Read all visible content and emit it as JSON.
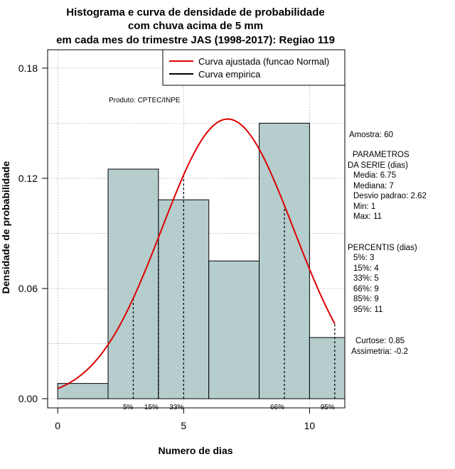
{
  "chart_data": {
    "type": "bar",
    "title_lines": [
      "Histograma e curva de densidade de probabilidade",
      "com chuva acima de 5 mm",
      "em cada mes do trimestre JAS (1998-2017): Regiao 119"
    ],
    "xlabel": "Numero de dias",
    "ylabel": "Densidade de probabilidade",
    "xlim": [
      -0.4,
      11.4
    ],
    "ylim": [
      -0.005,
      0.19
    ],
    "x_ticks": [
      0,
      5,
      10
    ],
    "y_ticks": [
      0.0,
      0.06,
      0.12,
      0.18
    ],
    "y_tick_labels": [
      "0.00",
      "0.06",
      "0.12",
      "0.18"
    ],
    "grid": true,
    "bins": [
      {
        "start": 0,
        "end": 2,
        "density": 0.0083
      },
      {
        "start": 2,
        "end": 4,
        "density": 0.125
      },
      {
        "start": 4,
        "end": 6,
        "density": 0.1083
      },
      {
        "start": 6,
        "end": 8,
        "density": 0.075
      },
      {
        "start": 8,
        "end": 10,
        "density": 0.15
      },
      {
        "start": 10,
        "end": 11.4,
        "density": 0.0333
      }
    ],
    "normal_curve": {
      "mean": 6.75,
      "sd": 2.62
    },
    "percentile_markers": [
      {
        "label": "5%",
        "x": 3
      },
      {
        "label": "15%",
        "x": 4
      },
      {
        "label": "33%",
        "x": 5
      },
      {
        "label": "66%",
        "x": 9
      },
      {
        "label": "95%",
        "x": 11
      }
    ],
    "legend": {
      "placement": "top-right",
      "entries": [
        {
          "label": "Curva ajustada (funcao Normal)",
          "color": "#dd0000"
        },
        {
          "label": "Curva empirica",
          "color": "#000000"
        }
      ]
    },
    "colors": {
      "bar_fill": "#b5cdcd",
      "curve": "#dd0000",
      "grid": "#bbbbbb"
    }
  },
  "credit": "Produto: CPTEC/INPE",
  "stats": {
    "amostra": "Amostra: 60",
    "param_header_1": "PARAMETROS",
    "param_header_2": "DA SERIE (dias)",
    "media": "Media: 6.75",
    "mediana": "Mediana: 7",
    "desvio": "Desvio padrao: 2.62",
    "min": "Min: 1",
    "max": "Max: 11",
    "percentis_header": "PERCENTIS (dias)",
    "p5": "5%: 3",
    "p15": "15%: 4",
    "p33": "33%: 5",
    "p66": "66%: 9",
    "p85": "85%: 9",
    "p95": "95%: 11",
    "curtose": "Curtose: 0.85",
    "assimetria": "Assimetria: -0.2"
  }
}
